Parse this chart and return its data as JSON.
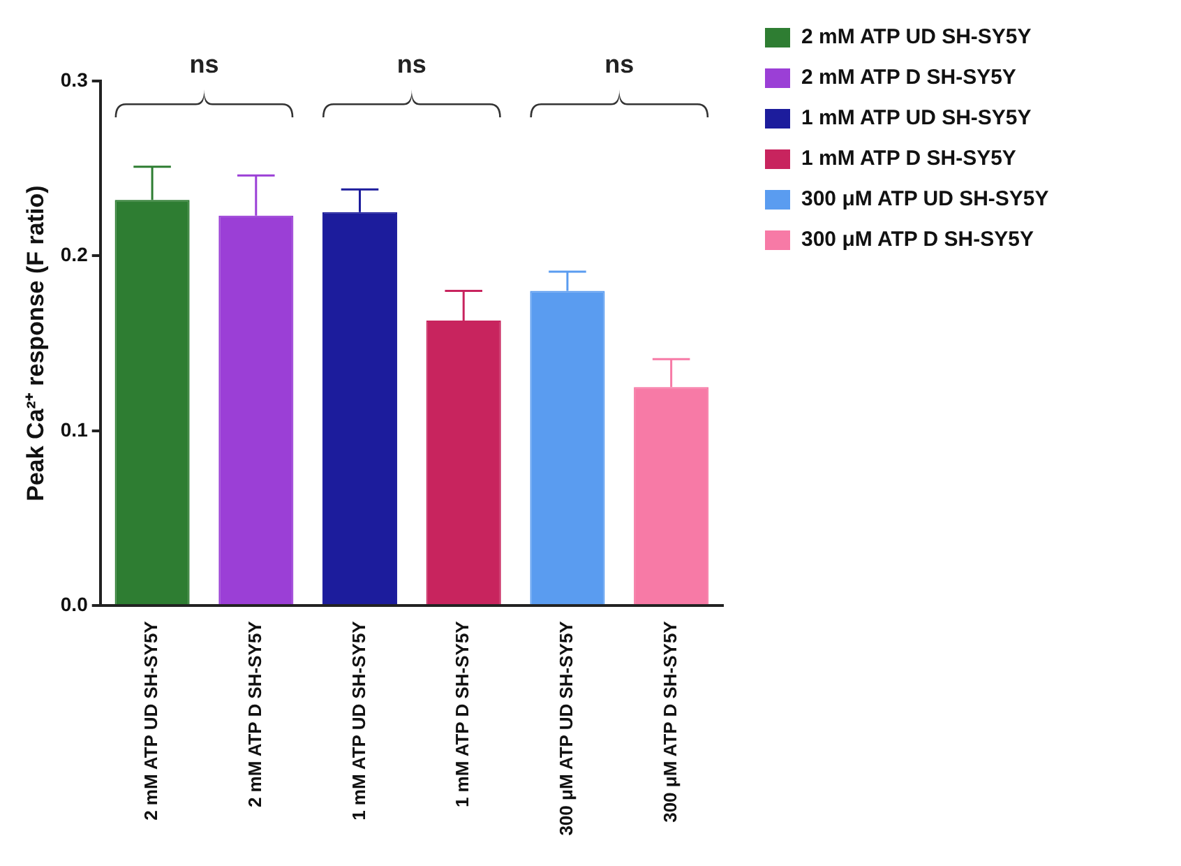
{
  "chart_data": {
    "type": "bar",
    "ylabel": "Peak Ca²⁺ response (F ratio)",
    "categories": [
      "2 mM ATP UD SH-SY5Y",
      "2 mM ATP D SH-SY5Y",
      "1 mM ATP UD SH-SY5Y",
      "1 mM ATP D SH-SY5Y",
      "300 μM ATP UD SH-SY5Y",
      "300 μM ATP D SH-SY5Y"
    ],
    "series": [
      {
        "name": "2 mM ATP UD SH-SY5Y",
        "color": "#2e7d32",
        "values": [
          0.232,
          null,
          null,
          null,
          null,
          null
        ],
        "errors": [
          [
            0.232,
            0.251
          ],
          null,
          null,
          null,
          null,
          null
        ]
      },
      {
        "name": "2 mM ATP D SH-SY5Y",
        "color": "#9b3fd6",
        "values": [
          null,
          0.223,
          null,
          null,
          null,
          null
        ],
        "errors": [
          null,
          [
            0.223,
            0.246
          ],
          null,
          null,
          null,
          null
        ]
      },
      {
        "name": "1 mM ATP UD SH-SY5Y",
        "color": "#1c1c9c",
        "values": [
          null,
          null,
          0.225,
          null,
          null,
          null
        ],
        "errors": [
          null,
          null,
          [
            0.225,
            0.238
          ],
          null,
          null,
          null
        ]
      },
      {
        "name": "1 mM ATP D SH-SY5Y",
        "color": "#c8245e",
        "values": [
          null,
          null,
          null,
          0.163,
          null,
          null
        ],
        "errors": [
          null,
          null,
          null,
          [
            0.163,
            0.18
          ],
          null,
          null
        ]
      },
      {
        "name": "300 μM ATP UD SH-SY5Y",
        "color": "#5a9cf0",
        "values": [
          null,
          null,
          null,
          null,
          0.18,
          null
        ],
        "errors": [
          null,
          null,
          null,
          null,
          [
            0.18,
            0.191
          ],
          null
        ]
      },
      {
        "name": "300 μM ATP D SH-SY5Y",
        "color": "#f77aa6",
        "values": [
          null,
          null,
          null,
          null,
          null,
          0.125
        ],
        "errors": [
          null,
          null,
          null,
          null,
          null,
          [
            0.125,
            0.141
          ]
        ]
      }
    ],
    "ylim": [
      0,
      0.3
    ],
    "yticks": [
      {
        "value": 0,
        "label": "0.0"
      },
      {
        "value": 0.1,
        "label": "0.1"
      },
      {
        "value": 0.2,
        "label": "0.2"
      },
      {
        "value": 0.3,
        "label": "0.3"
      }
    ],
    "grid": false,
    "legend": "top right",
    "annotations": [
      "ns",
      "ns",
      "ns"
    ]
  }
}
